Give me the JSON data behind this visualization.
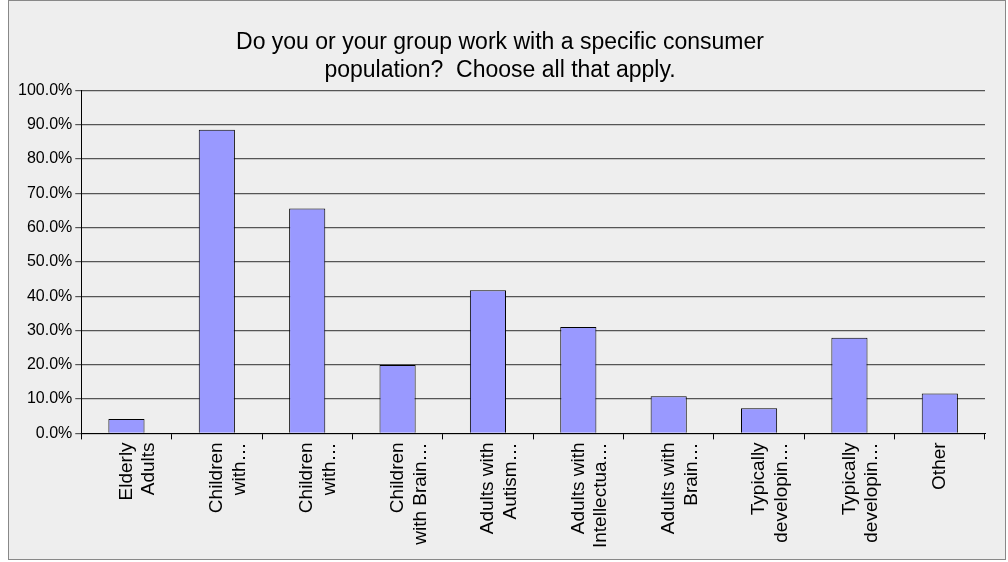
{
  "chart_data": {
    "type": "bar",
    "title": "Do you or your group work with a specific consumer\npopulation?  Choose all that apply.",
    "categories": [
      "Elderly\nAdults",
      "Children\nwith…",
      "Children\nwith…",
      "Children\nwith Brain…",
      "Adults with\nAutism…",
      "Adults with\nIntellectua…",
      "Adults with\nBrain…",
      "Typically\ndevelopin…",
      "Typically\ndevelopin…",
      "Other"
    ],
    "values": [
      4.2,
      88.5,
      65.5,
      19.9,
      41.7,
      31.0,
      10.8,
      7.3,
      27.9,
      11.6
    ],
    "color": "#9999ff",
    "ylim": [
      0,
      100
    ],
    "yticks": [
      {
        "value": 0,
        "label": "0.0%"
      },
      {
        "value": 10,
        "label": "10.0%"
      },
      {
        "value": 20,
        "label": "20.0%"
      },
      {
        "value": 30,
        "label": "30.0%"
      },
      {
        "value": 40,
        "label": "40.0%"
      },
      {
        "value": 50,
        "label": "50.0%"
      },
      {
        "value": 60,
        "label": "60.0%"
      },
      {
        "value": 70,
        "label": "70.0%"
      },
      {
        "value": 80,
        "label": "80.0%"
      },
      {
        "value": 90,
        "label": "90.0%"
      },
      {
        "value": 100,
        "label": "100.0%"
      }
    ],
    "grid": "y",
    "legend": false
  }
}
